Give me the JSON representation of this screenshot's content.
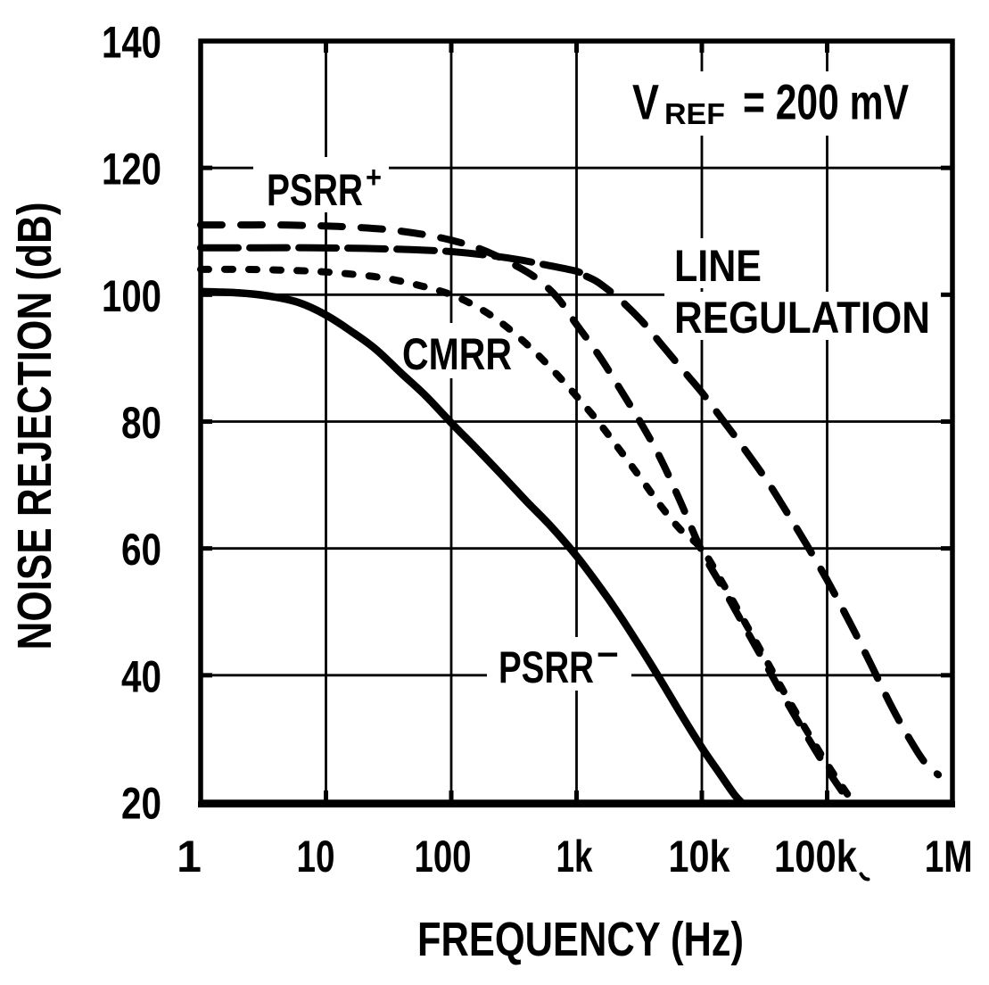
{
  "chart_data": {
    "type": "line",
    "title": "",
    "xlabel": "FREQUENCY (Hz)",
    "ylabel": "NOISE REJECTION (dB)",
    "x_scale": "log",
    "y_scale": "linear",
    "xlim": [
      1,
      1000000
    ],
    "ylim": [
      20,
      140
    ],
    "grid": true,
    "legend_position": "inline-labels",
    "colors": {
      "ink": "#000000",
      "paper": "#ffffff"
    },
    "annotation": {
      "variable": "V",
      "subscript": "REF",
      "value": "= 200 mV"
    },
    "x_ticks": [
      {
        "value": 1,
        "label": "1"
      },
      {
        "value": 10,
        "label": "10"
      },
      {
        "value": 100,
        "label": "100"
      },
      {
        "value": 1000,
        "label": "1k"
      },
      {
        "value": 10000,
        "label": "10k"
      },
      {
        "value": 100000,
        "label": "100k"
      },
      {
        "value": 1000000,
        "label": "1M"
      }
    ],
    "y_ticks": [
      {
        "value": 140,
        "label": "140"
      },
      {
        "value": 120,
        "label": "120"
      },
      {
        "value": 100,
        "label": "100"
      },
      {
        "value": 80,
        "label": "80"
      },
      {
        "value": 60,
        "label": "60"
      },
      {
        "value": 40,
        "label": "40"
      },
      {
        "value": 20,
        "label": "20"
      }
    ],
    "series": [
      {
        "id": "psrr_plus",
        "name": "PSRR+",
        "label_text": "PSRR",
        "label_sup": "+",
        "line_style": "long-dash",
        "points": [
          [
            1,
            111
          ],
          [
            2,
            111
          ],
          [
            4,
            111
          ],
          [
            8,
            110.9
          ],
          [
            15,
            110.7
          ],
          [
            30,
            110.3
          ],
          [
            60,
            109.5
          ],
          [
            100,
            108.6
          ],
          [
            150,
            107.6
          ],
          [
            220,
            106.3
          ],
          [
            320,
            104.7
          ],
          [
            470,
            102.7
          ],
          [
            700,
            99.6
          ],
          [
            1000,
            95.3
          ],
          [
            1500,
            90.5
          ],
          [
            2200,
            85.3
          ],
          [
            3300,
            79.6
          ],
          [
            4700,
            74.1
          ],
          [
            6800,
            67.2
          ],
          [
            10000,
            59.6
          ],
          [
            15000,
            53.5
          ],
          [
            22000,
            47.6
          ],
          [
            33000,
            41.4
          ],
          [
            47000,
            36.0
          ],
          [
            68000,
            30.6
          ],
          [
            100000,
            25.2
          ],
          [
            140000,
            20.9
          ],
          [
            150000,
            20
          ]
        ]
      },
      {
        "id": "line_regulation",
        "name": "LINE REGULATION",
        "label_lines": [
          "LINE",
          "REGULATION"
        ],
        "line_style": "xlong-dash",
        "points": [
          [
            1,
            107.4
          ],
          [
            3,
            107.4
          ],
          [
            8,
            107.4
          ],
          [
            20,
            107.3
          ],
          [
            50,
            107.1
          ],
          [
            100,
            106.8
          ],
          [
            200,
            106.2
          ],
          [
            350,
            105.5
          ],
          [
            600,
            104.6
          ],
          [
            1000,
            103.7
          ],
          [
            1200,
            102.9
          ],
          [
            1500,
            101.9
          ],
          [
            2200,
            99.3
          ],
          [
            3300,
            95.9
          ],
          [
            4700,
            92.3
          ],
          [
            6800,
            88.5
          ],
          [
            10000,
            84.6
          ],
          [
            15000,
            80
          ],
          [
            22000,
            75.6
          ],
          [
            33000,
            70.7
          ],
          [
            47000,
            65.9
          ],
          [
            68000,
            60.7
          ],
          [
            100000,
            55
          ],
          [
            150000,
            48.5
          ],
          [
            220000,
            42
          ],
          [
            330000,
            34.9
          ],
          [
            470000,
            29.5
          ],
          [
            600000,
            26.3
          ],
          [
            770000,
            24.3
          ]
        ]
      },
      {
        "id": "cmrr",
        "name": "CMRR",
        "label_text": "CMRR",
        "line_style": "short-dash",
        "points": [
          [
            1,
            104
          ],
          [
            2,
            104
          ],
          [
            4,
            103.9
          ],
          [
            8,
            103.7
          ],
          [
            15,
            103.3
          ],
          [
            30,
            102.6
          ],
          [
            60,
            101.3
          ],
          [
            100,
            100
          ],
          [
            150,
            98.4
          ],
          [
            220,
            96.4
          ],
          [
            320,
            93.9
          ],
          [
            470,
            90.9
          ],
          [
            700,
            87.4
          ],
          [
            1000,
            84
          ],
          [
            1500,
            79.9
          ],
          [
            2200,
            75.6
          ],
          [
            3300,
            70.9
          ],
          [
            4700,
            66.7
          ],
          [
            6800,
            62.9
          ],
          [
            10000,
            59.9
          ],
          [
            15000,
            54.2
          ],
          [
            22000,
            48.4
          ],
          [
            33000,
            42.2
          ],
          [
            47000,
            36.8
          ],
          [
            68000,
            31.4
          ],
          [
            100000,
            26.0
          ],
          [
            140000,
            21.7
          ],
          [
            163000,
            19.9
          ]
        ]
      },
      {
        "id": "psrr_minus",
        "name": "PSRR−",
        "label_text": "PSRR",
        "label_sup": "−",
        "line_style": "solid",
        "points": [
          [
            1,
            100.5
          ],
          [
            2,
            100.3
          ],
          [
            3.5,
            99.8
          ],
          [
            6,
            98.8
          ],
          [
            10,
            96.8
          ],
          [
            16,
            94.2
          ],
          [
            25,
            91.4
          ],
          [
            40,
            87.6
          ],
          [
            63,
            84
          ],
          [
            100,
            79.8
          ],
          [
            160,
            75.7
          ],
          [
            250,
            71.7
          ],
          [
            400,
            67.4
          ],
          [
            630,
            63.4
          ],
          [
            1000,
            58.8
          ],
          [
            1500,
            54.2
          ],
          [
            2200,
            49.5
          ],
          [
            3300,
            44.1
          ],
          [
            4700,
            39.2
          ],
          [
            6800,
            33.9
          ],
          [
            10000,
            28.6
          ],
          [
            14000,
            24.4
          ],
          [
            18000,
            21.3
          ],
          [
            21000,
            19.8
          ]
        ]
      }
    ]
  }
}
